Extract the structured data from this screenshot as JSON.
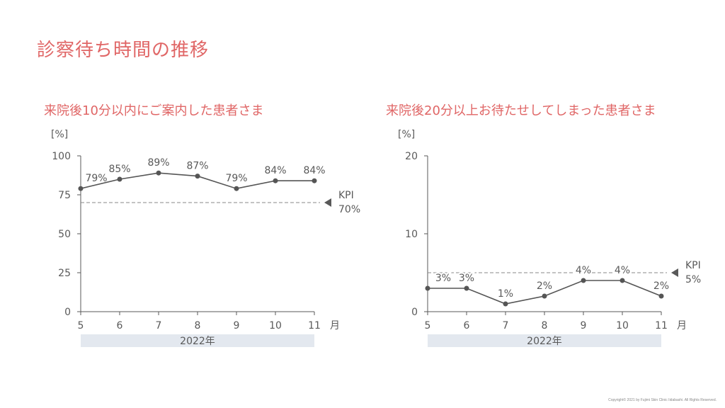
{
  "page": {
    "title": "診察待ち時間の推移",
    "copyright": "Copyright© 2021 by Fujimi Skin Clinic Iidabashi. All Rights Reserved."
  },
  "colors": {
    "accent": "#e06666",
    "line": "#555555",
    "axis": "#595959",
    "band": "#e3e8ef"
  },
  "chart_data": [
    {
      "type": "line",
      "title": "来院後10分以内にご案内した患者さま",
      "ylabel": "[%]",
      "xlabel": "月",
      "year_label": "2022年",
      "x": [
        5,
        6,
        7,
        8,
        9,
        10,
        11
      ],
      "values": [
        79,
        85,
        89,
        87,
        79,
        84,
        84
      ],
      "data_labels": [
        "79%",
        "85%",
        "89%",
        "87%",
        "79%",
        "84%",
        "84%"
      ],
      "ylim": [
        0,
        100
      ],
      "yticks": [
        0,
        25,
        50,
        75,
        100
      ],
      "kpi": {
        "label": "KPI",
        "value": 70,
        "value_label": "70%"
      },
      "grid": false
    },
    {
      "type": "line",
      "title": "来院後20分以上お待たせしてしまった患者さま",
      "ylabel": "[%]",
      "xlabel": "月",
      "year_label": "2022年",
      "x": [
        5,
        6,
        7,
        8,
        9,
        10,
        11
      ],
      "values": [
        3,
        3,
        1,
        2,
        4,
        4,
        2
      ],
      "data_labels": [
        "3%",
        "3%",
        "1%",
        "2%",
        "4%",
        "4%",
        "2%"
      ],
      "ylim": [
        0,
        20
      ],
      "yticks": [
        0,
        10,
        20
      ],
      "kpi": {
        "label": "KPI",
        "value": 5,
        "value_label": "5%"
      },
      "grid": false
    }
  ]
}
